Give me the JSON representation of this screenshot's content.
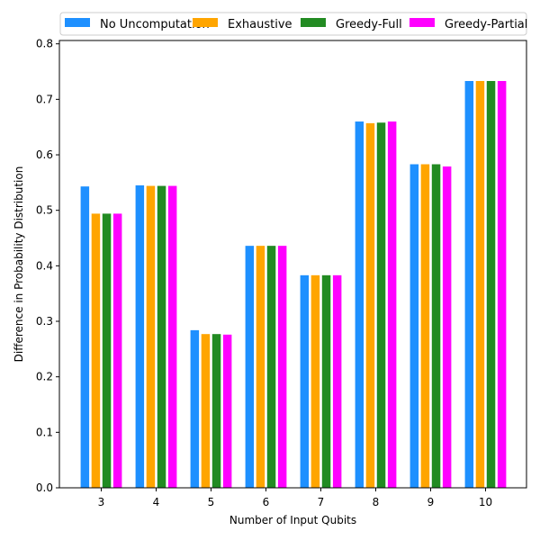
{
  "chart_data": {
    "type": "bar",
    "xlabel": "Number of Input Qubits",
    "ylabel": "Difference in Probability Distribution",
    "categories": [
      "3",
      "4",
      "5",
      "6",
      "7",
      "8",
      "9",
      "10"
    ],
    "ylim": [
      0,
      0.806
    ],
    "yticks": [
      "0.0",
      "0.1",
      "0.2",
      "0.3",
      "0.4",
      "0.5",
      "0.6",
      "0.7",
      "0.8"
    ],
    "grid": false,
    "legend_position": "top",
    "series": [
      {
        "name": "No Uncomputation",
        "color": "#1e90ff",
        "values": [
          0.543,
          0.545,
          0.284,
          0.436,
          0.383,
          0.66,
          0.583,
          0.733
        ]
      },
      {
        "name": "Exhaustive",
        "color": "#ffa500",
        "values": [
          0.494,
          0.544,
          0.277,
          0.436,
          0.383,
          0.657,
          0.583,
          0.733
        ]
      },
      {
        "name": "Greedy-Full",
        "color": "#228b22",
        "values": [
          0.494,
          0.544,
          0.277,
          0.436,
          0.383,
          0.658,
          0.583,
          0.733
        ]
      },
      {
        "name": "Greedy-Partial",
        "color": "#ff00ff",
        "values": [
          0.494,
          0.544,
          0.276,
          0.436,
          0.383,
          0.66,
          0.579,
          0.733
        ]
      }
    ]
  }
}
